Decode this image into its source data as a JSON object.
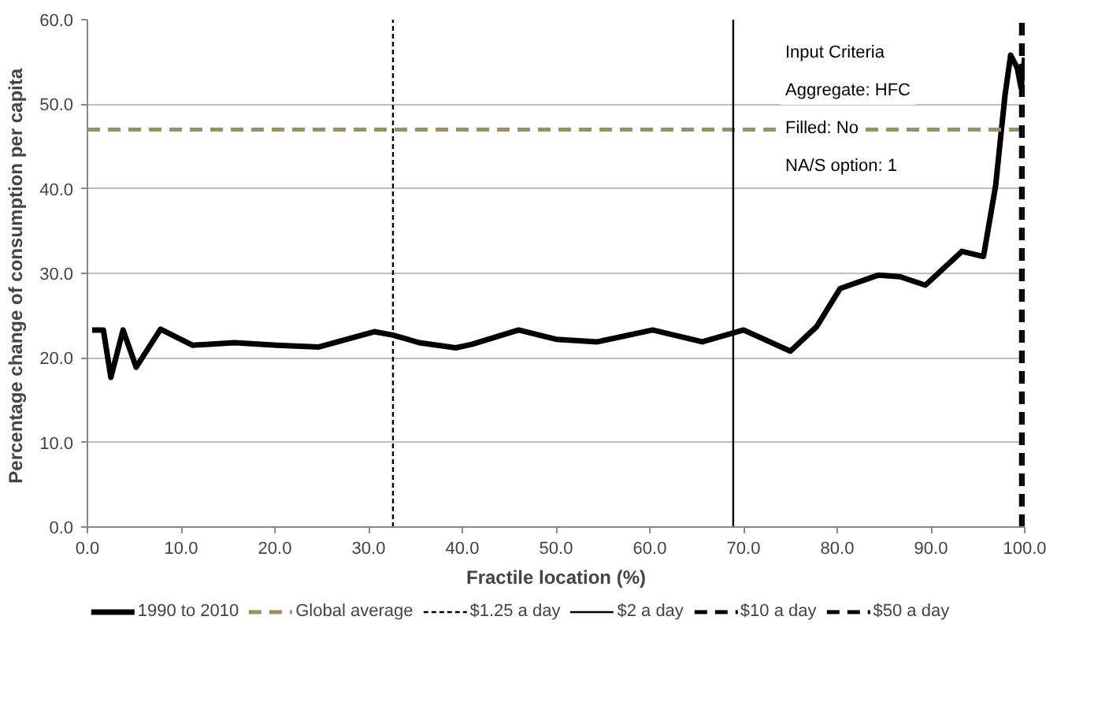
{
  "chart_data": {
    "type": "line",
    "xlabel": "Fractile location (%)",
    "ylabel": "Percentage change of  consumption per capita",
    "xlim": [
      0,
      100
    ],
    "ylim": [
      0,
      60
    ],
    "xticks": [
      {
        "value": 0,
        "label": "0.0"
      },
      {
        "value": 10,
        "label": "10.0"
      },
      {
        "value": 20,
        "label": "20.0"
      },
      {
        "value": 30,
        "label": "30.0"
      },
      {
        "value": 40,
        "label": "40.0"
      },
      {
        "value": 50,
        "label": "50.0"
      },
      {
        "value": 60,
        "label": "60.0"
      },
      {
        "value": 70,
        "label": "70.0"
      },
      {
        "value": 80,
        "label": "80.0"
      },
      {
        "value": 90,
        "label": "90.0"
      },
      {
        "value": 100,
        "label": "100.0"
      }
    ],
    "yticks": [
      {
        "value": 0,
        "label": "0.0"
      },
      {
        "value": 10,
        "label": "10.0"
      },
      {
        "value": 20,
        "label": "20.0"
      },
      {
        "value": 30,
        "label": "30.0"
      },
      {
        "value": 40,
        "label": "40.0"
      },
      {
        "value": 50,
        "label": "50.0"
      },
      {
        "value": 60,
        "label": "60.0"
      }
    ],
    "grid": "y",
    "legend": "bottom",
    "line_style": "solid",
    "marker": "none",
    "series": [
      {
        "name": "1990 to 2010",
        "color": "#000000",
        "x": [
          0.5,
          1.7,
          2.5,
          3.8,
          5.2,
          7.8,
          11.2,
          15.7,
          20.2,
          24.7,
          30.6,
          32.6,
          35.4,
          39.3,
          41,
          46,
          50,
          54.4,
          60.3,
          65.6,
          70,
          75,
          77.8,
          80.3,
          84.4,
          86.7,
          89.4,
          93.3,
          95.6,
          96.9,
          97.9,
          98.5,
          99.2,
          99.6,
          100
        ],
        "values": [
          23.3,
          23.3,
          17.7,
          23.3,
          18.9,
          23.4,
          21.5,
          21.8,
          21.5,
          21.3,
          23.1,
          22.7,
          21.8,
          21.2,
          21.6,
          23.3,
          22.2,
          21.9,
          23.3,
          21.9,
          23.3,
          20.8,
          23.7,
          28.2,
          29.8,
          29.6,
          28.6,
          32.6,
          32,
          40.4,
          51.1,
          55.8,
          54.3,
          52,
          55.5
        ]
      }
    ],
    "ref_lines": [
      {
        "axis": "y",
        "value": 47,
        "label": "Global average",
        "color": "#9c8f5c",
        "line_style": "dashed"
      },
      {
        "axis": "x",
        "value": 32.6,
        "label": "$1.25 a day",
        "color": "#000000",
        "line_style": "dotted"
      },
      {
        "axis": "x",
        "value": 68.9,
        "label": "$2 a day",
        "color": "#000000",
        "line_style": "solid"
      },
      {
        "axis": "x",
        "value": 99.6,
        "label": "$10 a day",
        "color": "#000000",
        "line_style": "dashed"
      },
      {
        "axis": "x",
        "value": 100,
        "label": "$50 a day",
        "color": "#000000",
        "line_style": "dashed"
      }
    ],
    "annotations": [
      "Input Criteria",
      "Aggregate: HFC",
      "Filled: No",
      "NA/S option: 1"
    ]
  }
}
